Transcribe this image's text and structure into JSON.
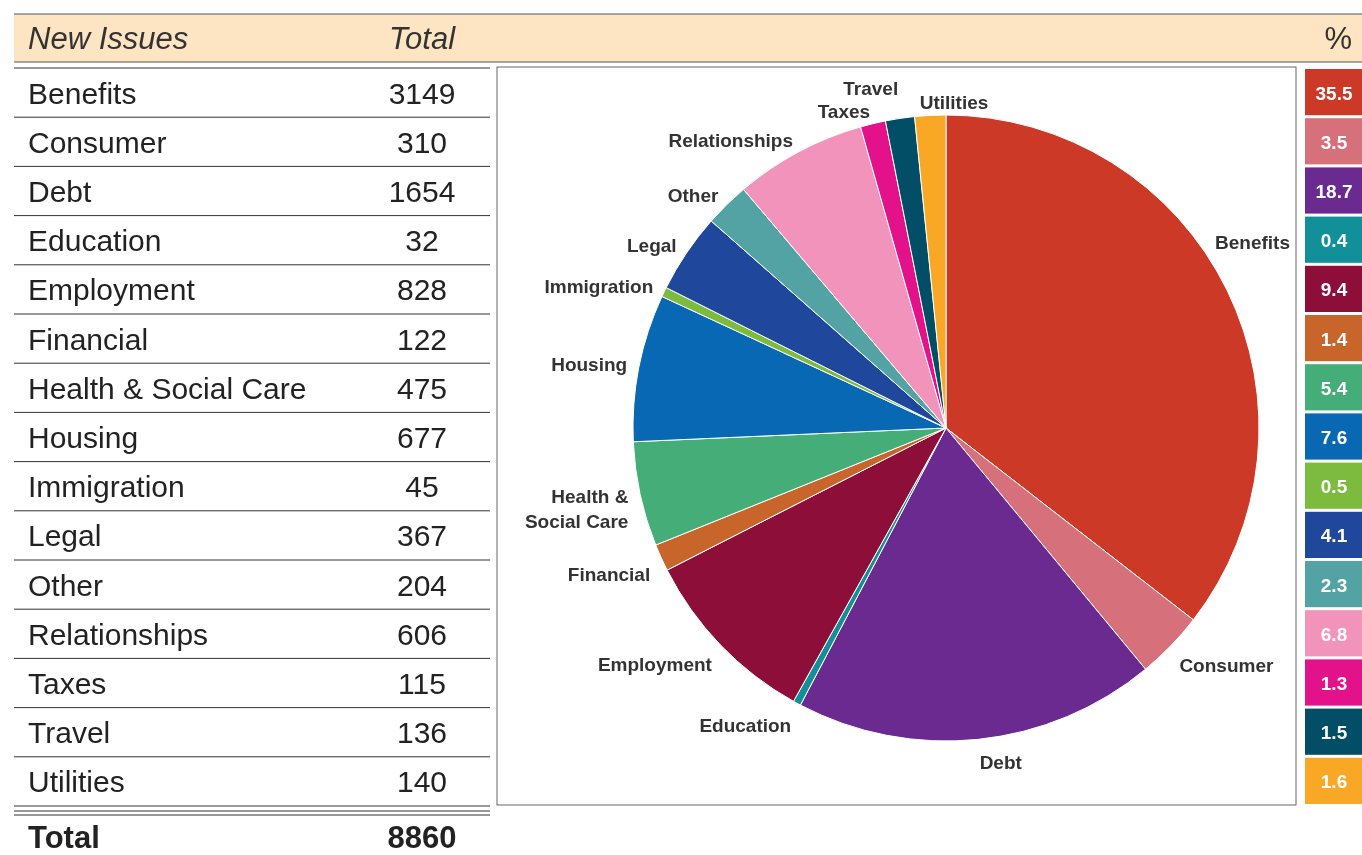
{
  "chart_data": [
    {
      "type": "other",
      "categories": [
        "Benefits",
        "Consumer",
        "Debt",
        "Education",
        "Employment",
        "Financial",
        "Health & Social Care",
        "Housing",
        "Immigration",
        "Legal",
        "Other",
        "Relationships",
        "Taxes",
        "Travel",
        "Utilities"
      ],
      "values": [
        3149,
        310,
        1654,
        32,
        828,
        122,
        475,
        677,
        45,
        367,
        204,
        606,
        115,
        136,
        140
      ],
      "data_labels": true,
      "totals": [
        "8860"
      ],
      "annotations": [
        "New Issues",
        "Total",
        "Total"
      ]
    },
    {
      "type": "pie",
      "categories": [
        "Benefits",
        "Consumer",
        "Debt",
        "Education",
        "Employment",
        "Financial",
        "Health & Social Care",
        "Housing",
        "Immigration",
        "Legal",
        "Other",
        "Relationships",
        "Taxes",
        "Travel",
        "Utilities"
      ],
      "values": [
        35.5,
        3.5,
        18.7,
        0.4,
        9.4,
        1.4,
        5.4,
        7.6,
        0.5,
        4.1,
        2.3,
        6.8,
        1.3,
        1.5,
        1.6
      ],
      "colors": [
        "#cc3a27",
        "#d6707a",
        "#6a2a90",
        "#11909a",
        "#8e0e3a",
        "#c8652a",
        "#45ad78",
        "#0868b4",
        "#7dbb3e",
        "#1f479c",
        "#53a3a5",
        "#f293bc",
        "#e3128a",
        "#024e66",
        "#f9a825"
      ]
    },
    {
      "type": "other",
      "title": "%",
      "values": [
        35.5,
        3.5,
        18.7,
        0.4,
        9.4,
        1.4,
        5.4,
        7.6,
        0.5,
        4.1,
        2.3,
        6.8,
        1.3,
        1.5,
        1.6
      ],
      "colors": [
        "#cc3a27",
        "#d6707a",
        "#6a2a90",
        "#11909a",
        "#8e0e3a",
        "#c8652a",
        "#45ad78",
        "#0868b4",
        "#7dbb3e",
        "#1f479c",
        "#53a3a5",
        "#f293bc",
        "#e3128a",
        "#024e66",
        "#f9a825"
      ],
      "data_labels": true
    }
  ]
}
